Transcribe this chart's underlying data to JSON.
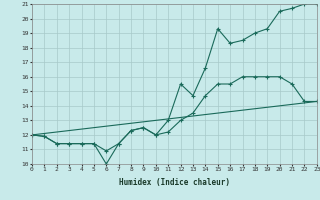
{
  "title": "",
  "xlabel": "Humidex (Indice chaleur)",
  "bg_color": "#c8eaea",
  "grid_color": "#a8caca",
  "line_color": "#1a6a5a",
  "xmin": 0,
  "xmax": 23,
  "ymin": 10,
  "ymax": 21,
  "curve1_x": [
    0,
    1,
    2,
    3,
    4,
    5,
    6,
    7,
    8,
    9,
    10,
    11,
    12,
    13,
    14,
    15,
    16,
    17,
    18,
    19,
    20,
    21,
    22,
    23
  ],
  "curve1_y": [
    12.0,
    11.9,
    11.4,
    11.4,
    11.4,
    11.4,
    10.9,
    11.4,
    12.3,
    12.5,
    12.0,
    13.0,
    15.5,
    14.7,
    16.6,
    19.3,
    18.3,
    18.5,
    19.0,
    19.3,
    20.5,
    20.7,
    21.0,
    21.0
  ],
  "curve2_x": [
    0,
    1,
    2,
    3,
    4,
    5,
    6,
    7,
    8,
    9,
    10,
    11,
    12,
    13,
    14,
    15,
    16,
    17,
    18,
    19,
    20,
    21,
    22,
    23
  ],
  "curve2_y": [
    12.0,
    11.9,
    11.4,
    11.4,
    11.4,
    11.4,
    10.0,
    11.4,
    12.3,
    12.5,
    12.0,
    12.2,
    13.0,
    13.5,
    14.7,
    15.5,
    15.5,
    16.0,
    16.0,
    16.0,
    16.0,
    15.5,
    14.3,
    14.3
  ],
  "curve3_x": [
    0,
    23
  ],
  "curve3_y": [
    12.0,
    14.3
  ]
}
